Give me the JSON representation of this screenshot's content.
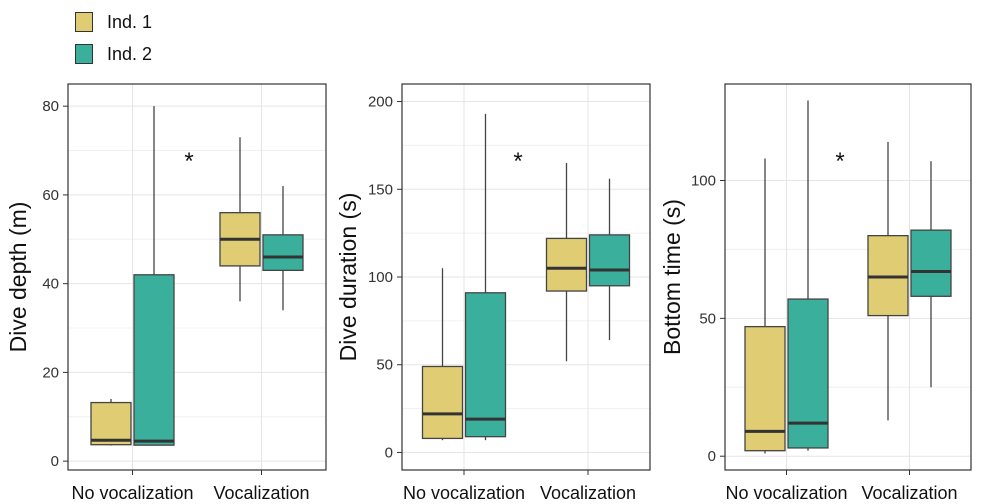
{
  "legend": {
    "items": [
      {
        "label": "Ind. 1",
        "color": "#e0cc73"
      },
      {
        "label": "Ind. 2",
        "color": "#3aaf9b"
      }
    ]
  },
  "chart_data": [
    {
      "type": "box",
      "ylabel": "Dive depth (m)",
      "categories": [
        "No vocalization",
        "Vocalization"
      ],
      "ylim": [
        -2,
        85
      ],
      "yticks": [
        0,
        20,
        40,
        60,
        80
      ],
      "annotation": "*",
      "grid": true,
      "series": [
        {
          "name": "Ind. 1",
          "color": "#e0cc73",
          "boxes": [
            {
              "min": 3.5,
              "q1": 3.7,
              "median": 4.7,
              "q3": 13.2,
              "max": 14
            },
            {
              "min": 36,
              "q1": 44,
              "median": 50,
              "q3": 56,
              "max": 73
            }
          ]
        },
        {
          "name": "Ind. 2",
          "color": "#3aaf9b",
          "boxes": [
            {
              "min": 3.5,
              "q1": 3.6,
              "median": 4.5,
              "q3": 42,
              "max": 80
            },
            {
              "min": 34,
              "q1": 43,
              "median": 46,
              "q3": 51,
              "max": 62
            }
          ]
        }
      ]
    },
    {
      "type": "box",
      "ylabel": "Dive duration (s)",
      "categories": [
        "No vocalization",
        "Vocalization"
      ],
      "ylim": [
        -10,
        210
      ],
      "yticks": [
        0,
        50,
        100,
        150,
        200
      ],
      "annotation": "*",
      "grid": true,
      "series": [
        {
          "name": "Ind. 1",
          "color": "#e0cc73",
          "boxes": [
            {
              "min": 7,
              "q1": 8,
              "median": 22,
              "q3": 49,
              "max": 105
            },
            {
              "min": 52,
              "q1": 92,
              "median": 105,
              "q3": 122,
              "max": 165
            }
          ]
        },
        {
          "name": "Ind. 2",
          "color": "#3aaf9b",
          "boxes": [
            {
              "min": 7,
              "q1": 9,
              "median": 19,
              "q3": 91,
              "max": 193
            },
            {
              "min": 64,
              "q1": 95,
              "median": 104,
              "q3": 124,
              "max": 156
            }
          ]
        }
      ]
    },
    {
      "type": "box",
      "ylabel": "Bottom time (s)",
      "categories": [
        "No vocalization",
        "Vocalization"
      ],
      "ylim": [
        -5,
        135
      ],
      "yticks": [
        0,
        50,
        100
      ],
      "annotation": "*",
      "grid": true,
      "series": [
        {
          "name": "Ind. 1",
          "color": "#e0cc73",
          "boxes": [
            {
              "min": 1,
              "q1": 2,
              "median": 9,
              "q3": 47,
              "max": 108
            },
            {
              "min": 13,
              "q1": 51,
              "median": 65,
              "q3": 80,
              "max": 114
            }
          ]
        },
        {
          "name": "Ind. 2",
          "color": "#3aaf9b",
          "boxes": [
            {
              "min": 2,
              "q1": 3,
              "median": 12,
              "q3": 57,
              "max": 129
            },
            {
              "min": 25,
              "q1": 58,
              "median": 67,
              "q3": 82,
              "max": 107
            }
          ]
        }
      ]
    }
  ]
}
